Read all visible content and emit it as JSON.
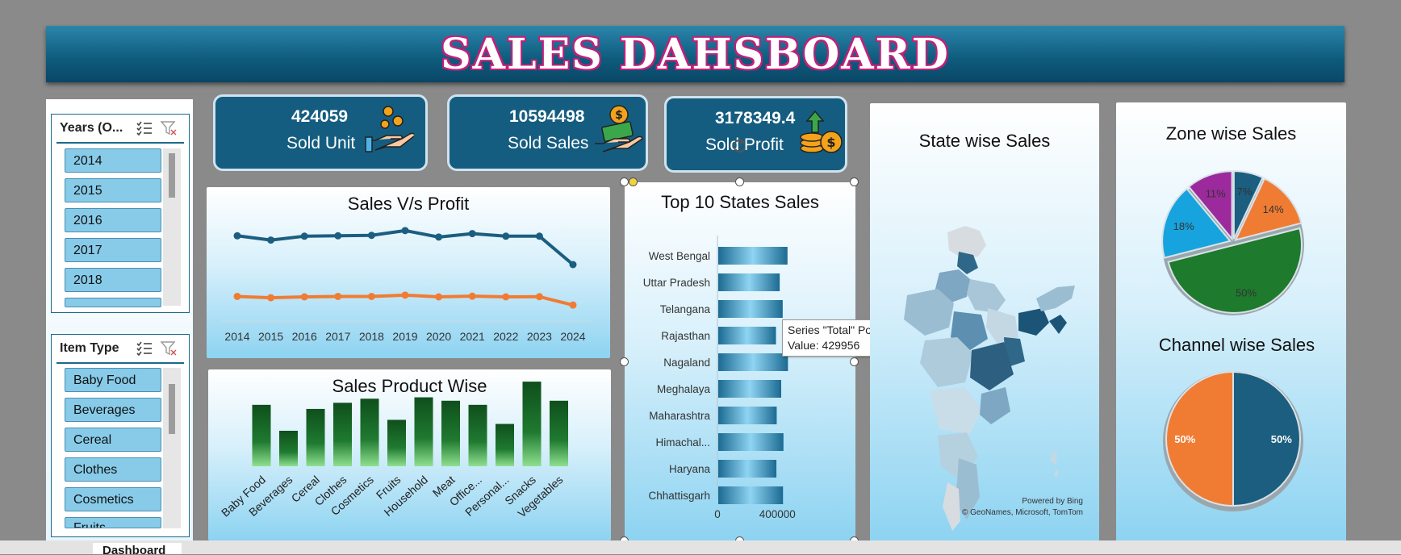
{
  "banner": {
    "title": "SALES DAHSBOARD"
  },
  "slicers": {
    "years": {
      "title": "Years (O...",
      "items": [
        "2014",
        "2015",
        "2016",
        "2017",
        "2018"
      ]
    },
    "item_type": {
      "title": "Item Type",
      "items": [
        "Baby Food",
        "Beverages",
        "Cereal",
        "Clothes",
        "Cosmetics",
        "Fruits"
      ]
    }
  },
  "kpis": [
    {
      "value": "424059",
      "label": "Sold Unit",
      "icon": "coins-hand-icon"
    },
    {
      "value": "10594498",
      "label": "Sold Sales",
      "icon": "money-hand-icon"
    },
    {
      "value": "3178349.4",
      "label": "Sold Profit",
      "icon": "profit-coins-icon"
    }
  ],
  "chart_data": [
    {
      "type": "line",
      "title": "Sales V/s Profit",
      "x": [
        "2014",
        "2015",
        "2016",
        "2017",
        "2018",
        "2019",
        "2020",
        "2021",
        "2022",
        "2023",
        "2024"
      ],
      "series": [
        {
          "values": [
            1010000,
            960000,
            1005000,
            1010000,
            1015000,
            1070000,
            995000,
            1035000,
            1005000,
            1005000,
            675000
          ],
          "color": "#1b5e80"
        },
        {
          "values": [
            305000,
            290000,
            300000,
            305000,
            305000,
            320000,
            300000,
            308000,
            300000,
            302000,
            205000
          ],
          "color": "#f07c34"
        }
      ],
      "ylim": [
        0,
        1200000
      ],
      "grid": false
    },
    {
      "type": "bar",
      "title": "Sales Product Wise",
      "categories": [
        "Baby Food",
        "Beverages",
        "Cereal",
        "Clothes",
        "Cosmetics",
        "Fruits",
        "Household",
        "Meat",
        "Office...",
        "Personal...",
        "Snacks",
        "Vegetables"
      ],
      "values": [
        900000,
        520000,
        840000,
        930000,
        990000,
        680000,
        1010000,
        960000,
        900000,
        620000,
        1240000,
        960000
      ],
      "ylim": [
        0,
        1300000
      ],
      "color": "#1a6e2a"
    },
    {
      "type": "bar",
      "orientation": "horizontal",
      "title": "Top 10 States Sales",
      "categories": [
        "West Bengal",
        "Uttar Pradesh",
        "Telangana",
        "Rajasthan",
        "Nagaland",
        "Meghalaya",
        "Maharashtra",
        "Himachal...",
        "Haryana",
        "Chhattisgarh"
      ],
      "values": [
        462000,
        410000,
        429956,
        385000,
        465000,
        420000,
        390000,
        435000,
        388000,
        432000
      ],
      "xlim": [
        0,
        700000
      ],
      "xticks": [
        "0",
        "400000"
      ],
      "tooltip": {
        "line1": "Series \"Total\" Point \"Telangana\"",
        "line2": "Value: 429956"
      }
    },
    {
      "type": "pie",
      "title": "Zone wise Sales",
      "slices": [
        {
          "label": "7%",
          "value": 7,
          "color": "#1b5e80"
        },
        {
          "label": "14%",
          "value": 14,
          "color": "#f07c34"
        },
        {
          "label": "50%",
          "value": 50,
          "color": "#1e7a2c"
        },
        {
          "label": "18%",
          "value": 18,
          "color": "#17a4de"
        },
        {
          "label": "11%",
          "value": 11,
          "color": "#9c2a9c"
        }
      ]
    },
    {
      "type": "pie",
      "title": "Channel wise Sales",
      "slices": [
        {
          "label": "50%",
          "value": 50,
          "color": "#1b5e80"
        },
        {
          "label": "50%",
          "value": 50,
          "color": "#f07c34"
        }
      ]
    }
  ],
  "map": {
    "title": "State wise Sales",
    "credit1": "Powered by Bing",
    "credit2": "© GeoNames, Microsoft, TomTom"
  },
  "sheet_tab": {
    "label": "Dashboard"
  }
}
